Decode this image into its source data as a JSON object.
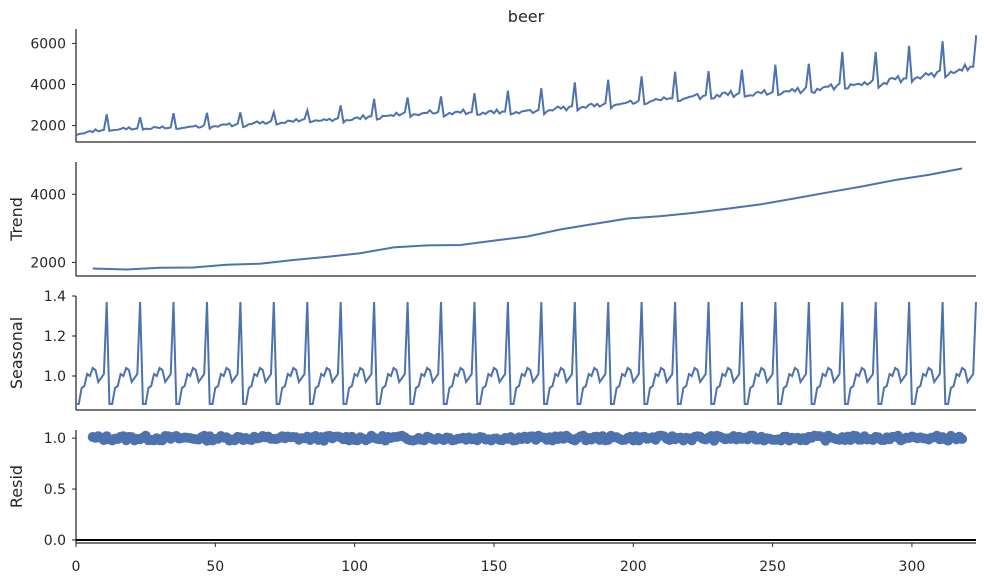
{
  "title": "beer",
  "colors": {
    "line": "#4c72b0",
    "axis": "#262626",
    "text": "#262626"
  },
  "chart_data": [
    {
      "panel": "observed",
      "type": "line",
      "title": "beer",
      "ylabel": "",
      "xlim": [
        0,
        323
      ],
      "ylim": [
        1200,
        6700
      ],
      "yticks": [
        2000,
        4000,
        6000
      ],
      "x_start": 0,
      "annual_base": [
        1530,
        1720,
        1770,
        1800,
        1870,
        1960,
        2050,
        2130,
        2170,
        2300,
        2450,
        2490,
        2520,
        2500,
        2610,
        2740,
        2840,
        3000,
        3170,
        3290,
        3350,
        3450,
        3580,
        3730,
        3880,
        4090,
        4350
      ],
      "annual_peak": [
        2550,
        2400,
        2600,
        2620,
        2640,
        2650,
        2740,
        2980,
        3300,
        3370,
        3420,
        3580,
        3700,
        3820,
        4100,
        4230,
        4400,
        4620,
        4650,
        4720,
        4960,
        5010,
        5580,
        5580,
        5880,
        6100,
        6250
      ],
      "last_value": 6400,
      "grid": false
    },
    {
      "panel": "trend",
      "type": "line",
      "ylabel": "Trend",
      "xlim": [
        0,
        323
      ],
      "ylim": [
        1600,
        4950
      ],
      "yticks": [
        2000,
        4000
      ],
      "x": [
        6,
        18,
        30,
        42,
        54,
        66,
        78,
        90,
        102,
        114,
        126,
        138,
        150,
        162,
        174,
        186,
        198,
        210,
        222,
        234,
        246,
        258,
        270,
        282,
        294,
        306,
        318
      ],
      "y": [
        1820,
        1790,
        1840,
        1850,
        1930,
        1960,
        2070,
        2160,
        2270,
        2440,
        2500,
        2510,
        2640,
        2760,
        2970,
        3130,
        3290,
        3360,
        3460,
        3580,
        3710,
        3880,
        4060,
        4230,
        4420,
        4570,
        4760
      ],
      "grid": false
    },
    {
      "panel": "seasonal",
      "type": "line",
      "ylabel": "Seasonal",
      "xlim": [
        0,
        323
      ],
      "ylim": [
        0.83,
        1.4
      ],
      "yticks": [
        1.0,
        1.2,
        1.4
      ],
      "period": 12,
      "pattern": [
        0.86,
        0.86,
        0.94,
        0.95,
        1.01,
        1.0,
        1.04,
        1.03,
        0.97,
        0.99,
        1.01,
        1.37
      ],
      "grid": false
    },
    {
      "panel": "resid",
      "type": "scatter",
      "ylabel": "Resid",
      "xlim": [
        0,
        323
      ],
      "ylim": [
        -0.03,
        1.08
      ],
      "yticks": [
        0.0,
        0.5,
        1.0
      ],
      "x_range": [
        6,
        318
      ],
      "center": 1.0,
      "spread": 0.05,
      "hline": 0.0,
      "grid": false
    }
  ],
  "x_axis": {
    "ticks": [
      "0",
      "50",
      "100",
      "150",
      "200",
      "250",
      "300"
    ],
    "label": ""
  }
}
